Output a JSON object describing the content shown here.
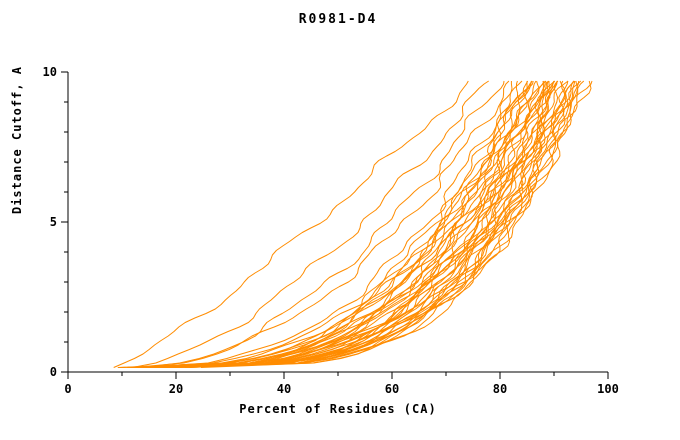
{
  "title": "R0981-D4",
  "chart_data": {
    "type": "line",
    "title": "R0981-D4",
    "xlabel": "Percent of Residues (CA)",
    "ylabel": "Distance Cutoff, A",
    "xlim": [
      0,
      100
    ],
    "ylim": [
      0,
      10
    ],
    "x_major_ticks": [
      0,
      20,
      40,
      60,
      80,
      100
    ],
    "x_minor_ticks": [
      10,
      30,
      50,
      70,
      90
    ],
    "y_major_ticks": [
      0,
      5,
      10
    ],
    "y_minor_ticks": [
      1,
      2,
      3,
      4,
      6,
      7,
      8,
      9
    ],
    "line_color": "#ff8c00",
    "axis_color": "#000000",
    "background": "#ffffff",
    "grid": false,
    "legend": "none",
    "y_start": 0.15,
    "y_top": 9.7,
    "series_note": "Dense bundle of ~44 per-model cumulative curves. Each curve is approximated by x(y) = start + (end - start) * ((y - y_start)/(y_top - y_start))^shape, with small sinusoidal wobble; 'start' = percent of residues at distance cutoff ~0.15 A, 'end' = percent at cutoff 9.7 A.",
    "series": [
      {
        "start": 9,
        "end": 88,
        "shape": 0.3,
        "seed": 1
      },
      {
        "start": 10,
        "end": 90,
        "shape": 0.28,
        "seed": 2
      },
      {
        "start": 10,
        "end": 85,
        "shape": 0.33,
        "seed": 3
      },
      {
        "start": 11,
        "end": 92,
        "shape": 0.27,
        "seed": 4
      },
      {
        "start": 11,
        "end": 86,
        "shape": 0.35,
        "seed": 5
      },
      {
        "start": 12,
        "end": 94,
        "shape": 0.26,
        "seed": 6
      },
      {
        "start": 12,
        "end": 89,
        "shape": 0.31,
        "seed": 7
      },
      {
        "start": 12,
        "end": 84,
        "shape": 0.37,
        "seed": 8
      },
      {
        "start": 13,
        "end": 91,
        "shape": 0.29,
        "seed": 9
      },
      {
        "start": 13,
        "end": 87,
        "shape": 0.34,
        "seed": 10
      },
      {
        "start": 13,
        "end": 95,
        "shape": 0.27,
        "seed": 11
      },
      {
        "start": 14,
        "end": 90,
        "shape": 0.3,
        "seed": 12
      },
      {
        "start": 14,
        "end": 85,
        "shape": 0.36,
        "seed": 13
      },
      {
        "start": 14,
        "end": 93,
        "shape": 0.28,
        "seed": 14
      },
      {
        "start": 15,
        "end": 88,
        "shape": 0.32,
        "seed": 15
      },
      {
        "start": 15,
        "end": 92,
        "shape": 0.29,
        "seed": 16
      },
      {
        "start": 15,
        "end": 96,
        "shape": 0.26,
        "seed": 17
      },
      {
        "start": 16,
        "end": 86,
        "shape": 0.35,
        "seed": 18
      },
      {
        "start": 16,
        "end": 90,
        "shape": 0.31,
        "seed": 19
      },
      {
        "start": 16,
        "end": 94,
        "shape": 0.28,
        "seed": 20
      },
      {
        "start": 17,
        "end": 87,
        "shape": 0.34,
        "seed": 21
      },
      {
        "start": 17,
        "end": 91,
        "shape": 0.3,
        "seed": 22
      },
      {
        "start": 17,
        "end": 95,
        "shape": 0.27,
        "seed": 23
      },
      {
        "start": 18,
        "end": 88,
        "shape": 0.33,
        "seed": 24
      },
      {
        "start": 18,
        "end": 92,
        "shape": 0.29,
        "seed": 25
      },
      {
        "start": 18,
        "end": 96,
        "shape": 0.27,
        "seed": 26
      },
      {
        "start": 19,
        "end": 89,
        "shape": 0.32,
        "seed": 27
      },
      {
        "start": 19,
        "end": 93,
        "shape": 0.28,
        "seed": 28
      },
      {
        "start": 20,
        "end": 86,
        "shape": 0.36,
        "seed": 29
      },
      {
        "start": 20,
        "end": 90,
        "shape": 0.31,
        "seed": 30
      },
      {
        "start": 20,
        "end": 94,
        "shape": 0.28,
        "seed": 31
      },
      {
        "start": 21,
        "end": 91,
        "shape": 0.3,
        "seed": 32
      },
      {
        "start": 21,
        "end": 87,
        "shape": 0.35,
        "seed": 33
      },
      {
        "start": 22,
        "end": 92,
        "shape": 0.3,
        "seed": 34
      },
      {
        "start": 22,
        "end": 95,
        "shape": 0.27,
        "seed": 35
      },
      {
        "start": 23,
        "end": 89,
        "shape": 0.33,
        "seed": 36
      },
      {
        "start": 24,
        "end": 93,
        "shape": 0.29,
        "seed": 37
      },
      {
        "start": 13,
        "end": 83,
        "shape": 0.4,
        "seed": 38
      },
      {
        "start": 16,
        "end": 84,
        "shape": 0.38,
        "seed": 39
      },
      {
        "start": 19,
        "end": 85,
        "shape": 0.37,
        "seed": 40
      },
      {
        "start": 9,
        "end": 75,
        "shape": 0.85,
        "seed": 41
      },
      {
        "start": 12,
        "end": 78,
        "shape": 0.65,
        "seed": 42
      },
      {
        "start": 14,
        "end": 80,
        "shape": 0.55,
        "seed": 43
      },
      {
        "start": 11,
        "end": 82,
        "shape": 0.48,
        "seed": 44
      }
    ]
  }
}
